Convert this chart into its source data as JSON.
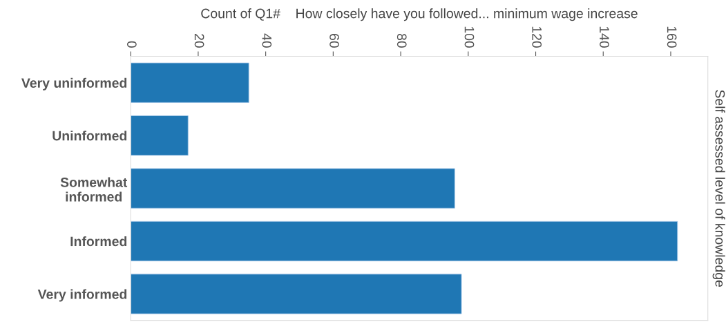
{
  "chart_data": {
    "type": "bar",
    "orientation": "horizontal",
    "xlabel": "Count of Q1#    How closely have you followed... minimum wage increase",
    "ylabel": "Self assessed level of knowledge",
    "categories": [
      "Very uninformed",
      "Uninformed",
      "Somewhat\ninformed",
      "Informed",
      "Very informed"
    ],
    "values": [
      35,
      17,
      96,
      162,
      98
    ],
    "color": "#1f77b4",
    "xlim": [
      0,
      171
    ],
    "xticks": [
      0,
      20,
      40,
      60,
      80,
      100,
      120,
      140,
      160
    ],
    "grid": false,
    "legend": false
  }
}
